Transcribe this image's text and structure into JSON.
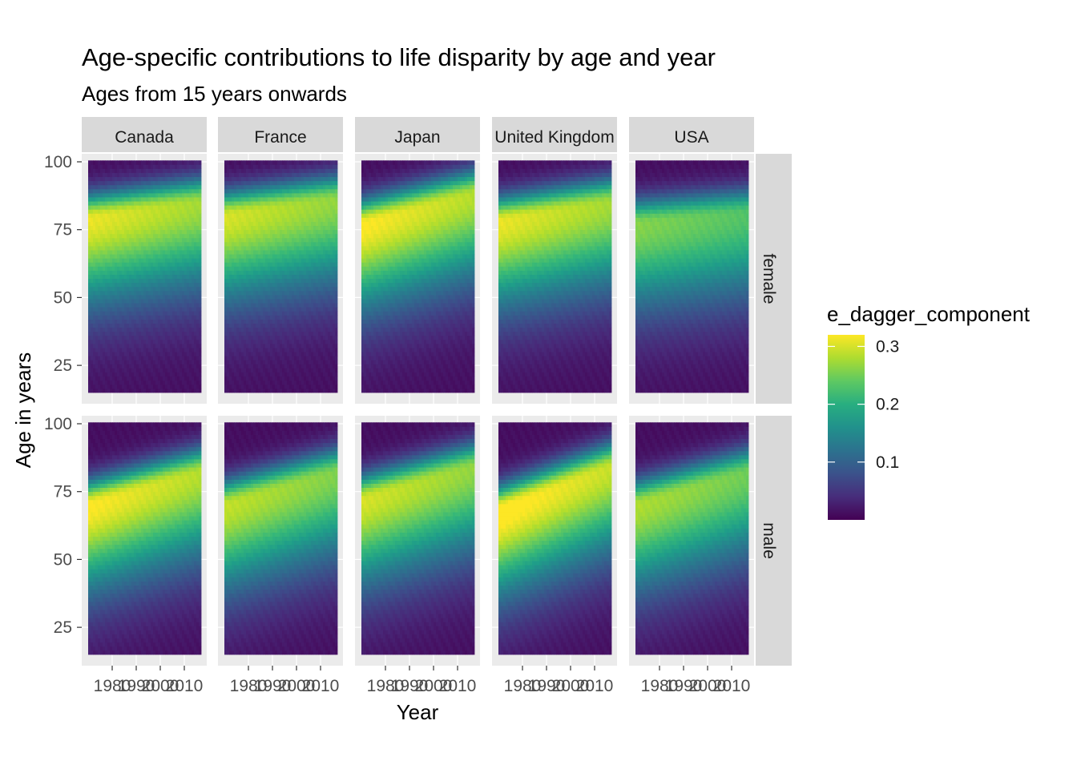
{
  "chart_data": {
    "type": "heatmap",
    "title": "Age-specific contributions to life disparity by age and year",
    "subtitle": "Ages from 15 years onwards",
    "xlabel": "Year",
    "ylabel": "Age in years",
    "columns": [
      "Canada",
      "France",
      "Japan",
      "United Kingdom",
      "USA"
    ],
    "rows": [
      "female",
      "male"
    ],
    "x_ticks": [
      1980,
      1990,
      2000,
      2010
    ],
    "y_ticks": [
      25,
      50,
      75,
      100
    ],
    "xlim": [
      1970,
      2017
    ],
    "ylim": [
      15,
      100
    ],
    "grid": true,
    "legend": {
      "title": "e_dagger_component",
      "position": "right",
      "ticks": [
        0.1,
        0.2,
        0.3
      ],
      "range": [
        0.0,
        0.32
      ],
      "colorscale": "viridis"
    },
    "panel_peaks": [
      {
        "country": "Canada",
        "sex": "female",
        "peak_age_start": 79,
        "peak_age_end": 85,
        "peak_value": 0.3
      },
      {
        "country": "France",
        "sex": "female",
        "peak_age_start": 80,
        "peak_age_end": 86,
        "peak_value": 0.29
      },
      {
        "country": "Japan",
        "sex": "female",
        "peak_age_start": 77,
        "peak_age_end": 88,
        "peak_value": 0.31
      },
      {
        "country": "United Kingdom",
        "sex": "female",
        "peak_age_start": 78,
        "peak_age_end": 85,
        "peak_value": 0.3
      },
      {
        "country": "USA",
        "sex": "female",
        "peak_age_start": 77,
        "peak_age_end": 81,
        "peak_value": 0.25
      },
      {
        "country": "Canada",
        "sex": "male",
        "peak_age_start": 70,
        "peak_age_end": 82,
        "peak_value": 0.31
      },
      {
        "country": "France",
        "sex": "male",
        "peak_age_start": 70,
        "peak_age_end": 82,
        "peak_value": 0.28
      },
      {
        "country": "Japan",
        "sex": "male",
        "peak_age_start": 72,
        "peak_age_end": 84,
        "peak_value": 0.29
      },
      {
        "country": "United Kingdom",
        "sex": "male",
        "peak_age_start": 68,
        "peak_age_end": 84,
        "peak_value": 0.32
      },
      {
        "country": "USA",
        "sex": "male",
        "peak_age_start": 70,
        "peak_age_end": 82,
        "peak_value": 0.27
      }
    ]
  }
}
